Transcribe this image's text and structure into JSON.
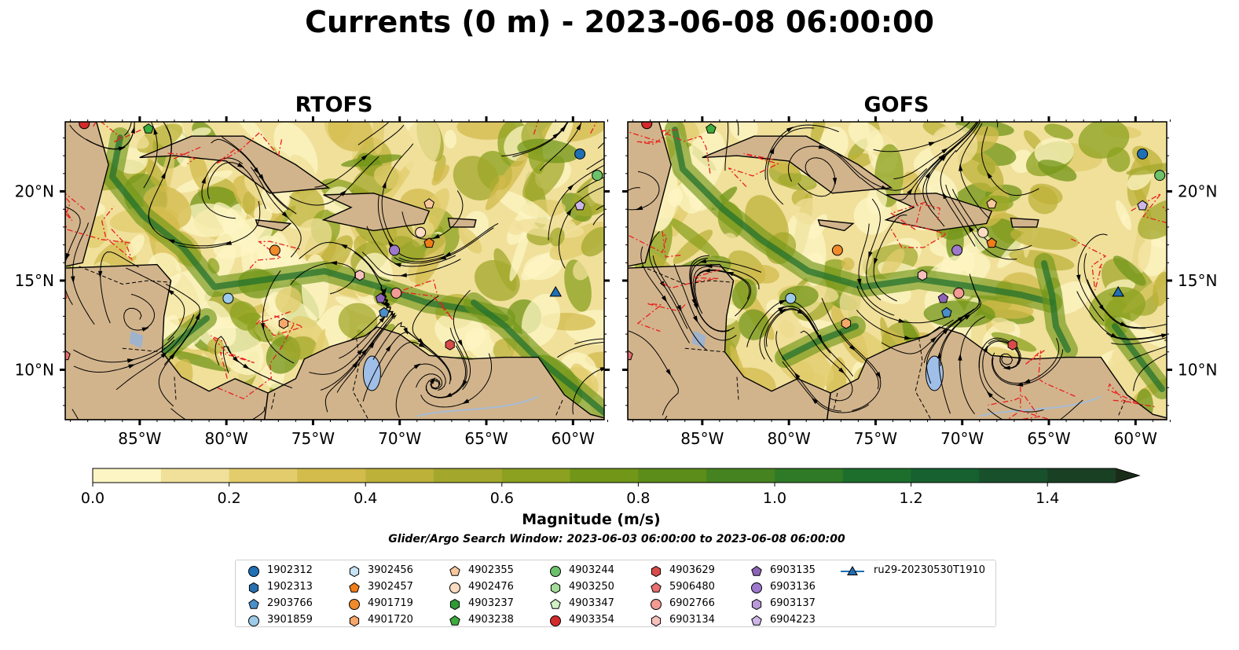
{
  "title": "Currents (0 m) - 2023-06-08 06:00:00",
  "panels": [
    {
      "title": "RTOFS"
    },
    {
      "title": "GOFS"
    }
  ],
  "colorbar": {
    "label": "Magnitude (m/s)",
    "ticks": [
      "0.0",
      "0.2",
      "0.4",
      "0.6",
      "0.8",
      "1.0",
      "1.2",
      "1.4"
    ],
    "min": 0.0,
    "max": 1.5,
    "step": 0.1,
    "extend": "max",
    "colors": [
      "#fdf6c4",
      "#f0e09a",
      "#e2cc6c",
      "#d3bb4c",
      "#bdb13a",
      "#a3a82c",
      "#8ba11f",
      "#719618",
      "#5c8c1a",
      "#458320",
      "#2f7a26",
      "#1d6e2c",
      "#16612f",
      "#18502c",
      "#1a4024",
      "#1a2c18"
    ]
  },
  "search_window": "Glider/Argo Search Window: 2023-06-03 06:00:00 to 2023-06-08 06:00:00",
  "map": {
    "lon_range": [
      -89.3,
      -58.2
    ],
    "lat_range": [
      7.2,
      23.9
    ],
    "lon_ticks": [
      "85°W",
      "80°W",
      "75°W",
      "70°W",
      "65°W",
      "60°W"
    ],
    "lat_ticks": [
      "20°N",
      "15°N",
      "10°N"
    ],
    "land_color": "#d2b48c",
    "water_color": "#9fbfe8"
  },
  "legend": [
    {
      "id": "1902312",
      "marker": "circle",
      "color": "#1f6fb4"
    },
    {
      "id": "1902313",
      "marker": "hexagon",
      "color": "#2a6fb0"
    },
    {
      "id": "2903766",
      "marker": "pentagon",
      "color": "#4a8fc8"
    },
    {
      "id": "3901859",
      "marker": "circle",
      "color": "#9ecbea"
    },
    {
      "id": "3902456",
      "marker": "hexagon",
      "color": "#c8e3f5"
    },
    {
      "id": "3902457",
      "marker": "pentagon",
      "color": "#f07d1a"
    },
    {
      "id": "4901719",
      "marker": "circle",
      "color": "#f08a2a"
    },
    {
      "id": "4901720",
      "marker": "hexagon",
      "color": "#f6a76a"
    },
    {
      "id": "4902355",
      "marker": "pentagon",
      "color": "#f8c79c"
    },
    {
      "id": "4902476",
      "marker": "circle",
      "color": "#fbdcc0"
    },
    {
      "id": "4903237",
      "marker": "hexagon",
      "color": "#2f9a35"
    },
    {
      "id": "4903238",
      "marker": "pentagon",
      "color": "#3cac3c"
    },
    {
      "id": "4903244",
      "marker": "circle",
      "color": "#6cc26a"
    },
    {
      "id": "4903250",
      "marker": "hexagon",
      "color": "#a3dc98"
    },
    {
      "id": "4903347",
      "marker": "pentagon",
      "color": "#d0f0c6"
    },
    {
      "id": "4903354",
      "marker": "circle",
      "color": "#d42a2a"
    },
    {
      "id": "4903629",
      "marker": "hexagon",
      "color": "#d94b4b"
    },
    {
      "id": "5906480",
      "marker": "pentagon",
      "color": "#e87070"
    },
    {
      "id": "6902766",
      "marker": "circle",
      "color": "#f29a94"
    },
    {
      "id": "6903134",
      "marker": "hexagon",
      "color": "#f7c0bc"
    },
    {
      "id": "6903135",
      "marker": "pentagon",
      "color": "#8d63b8"
    },
    {
      "id": "6903136",
      "marker": "circle",
      "color": "#9e78cc"
    },
    {
      "id": "6903137",
      "marker": "hexagon",
      "color": "#b99ad8"
    },
    {
      "id": "6904223",
      "marker": "pentagon",
      "color": "#cdb6e8"
    },
    {
      "id": "ru29-20230530T1910",
      "marker": "triangle-line",
      "color": "#1f6fb4"
    }
  ],
  "floats": [
    {
      "id": "1902312",
      "lon": -59.6,
      "lat": 22.1
    },
    {
      "id": "4903244",
      "lon": -58.6,
      "lat": 20.9
    },
    {
      "id": "6904223",
      "lon": -59.6,
      "lat": 19.2
    },
    {
      "id": "4902476",
      "lon": -68.8,
      "lat": 17.7
    },
    {
      "id": "3902457",
      "lon": -68.3,
      "lat": 17.1
    },
    {
      "id": "6903136",
      "lon": -70.3,
      "lat": 16.7
    },
    {
      "id": "4901719",
      "lon": -77.2,
      "lat": 16.7
    },
    {
      "id": "6903134",
      "lon": -72.3,
      "lat": 15.3
    },
    {
      "id": "6903135",
      "lon": -71.1,
      "lat": 14.0
    },
    {
      "id": "6902766",
      "lon": -70.2,
      "lat": 14.3
    },
    {
      "id": "2903766",
      "lon": -70.9,
      "lat": 13.2
    },
    {
      "id": "3901859",
      "lon": -79.9,
      "lat": 14.0
    },
    {
      "id": "4901720",
      "lon": -76.7,
      "lat": 12.6
    },
    {
      "id": "4903629",
      "lon": -67.1,
      "lat": 11.4
    },
    {
      "id": "4902355",
      "lon": -68.3,
      "lat": 19.3
    },
    {
      "id": "4903354",
      "lon": -88.2,
      "lat": 23.8
    },
    {
      "id": "4903238",
      "lon": -84.5,
      "lat": 23.5
    },
    {
      "id": "5906480",
      "lon": -89.3,
      "lat": 10.8
    }
  ],
  "glider": {
    "id": "ru29-20230530T1910",
    "lon": -61.0,
    "lat": 14.3
  }
}
